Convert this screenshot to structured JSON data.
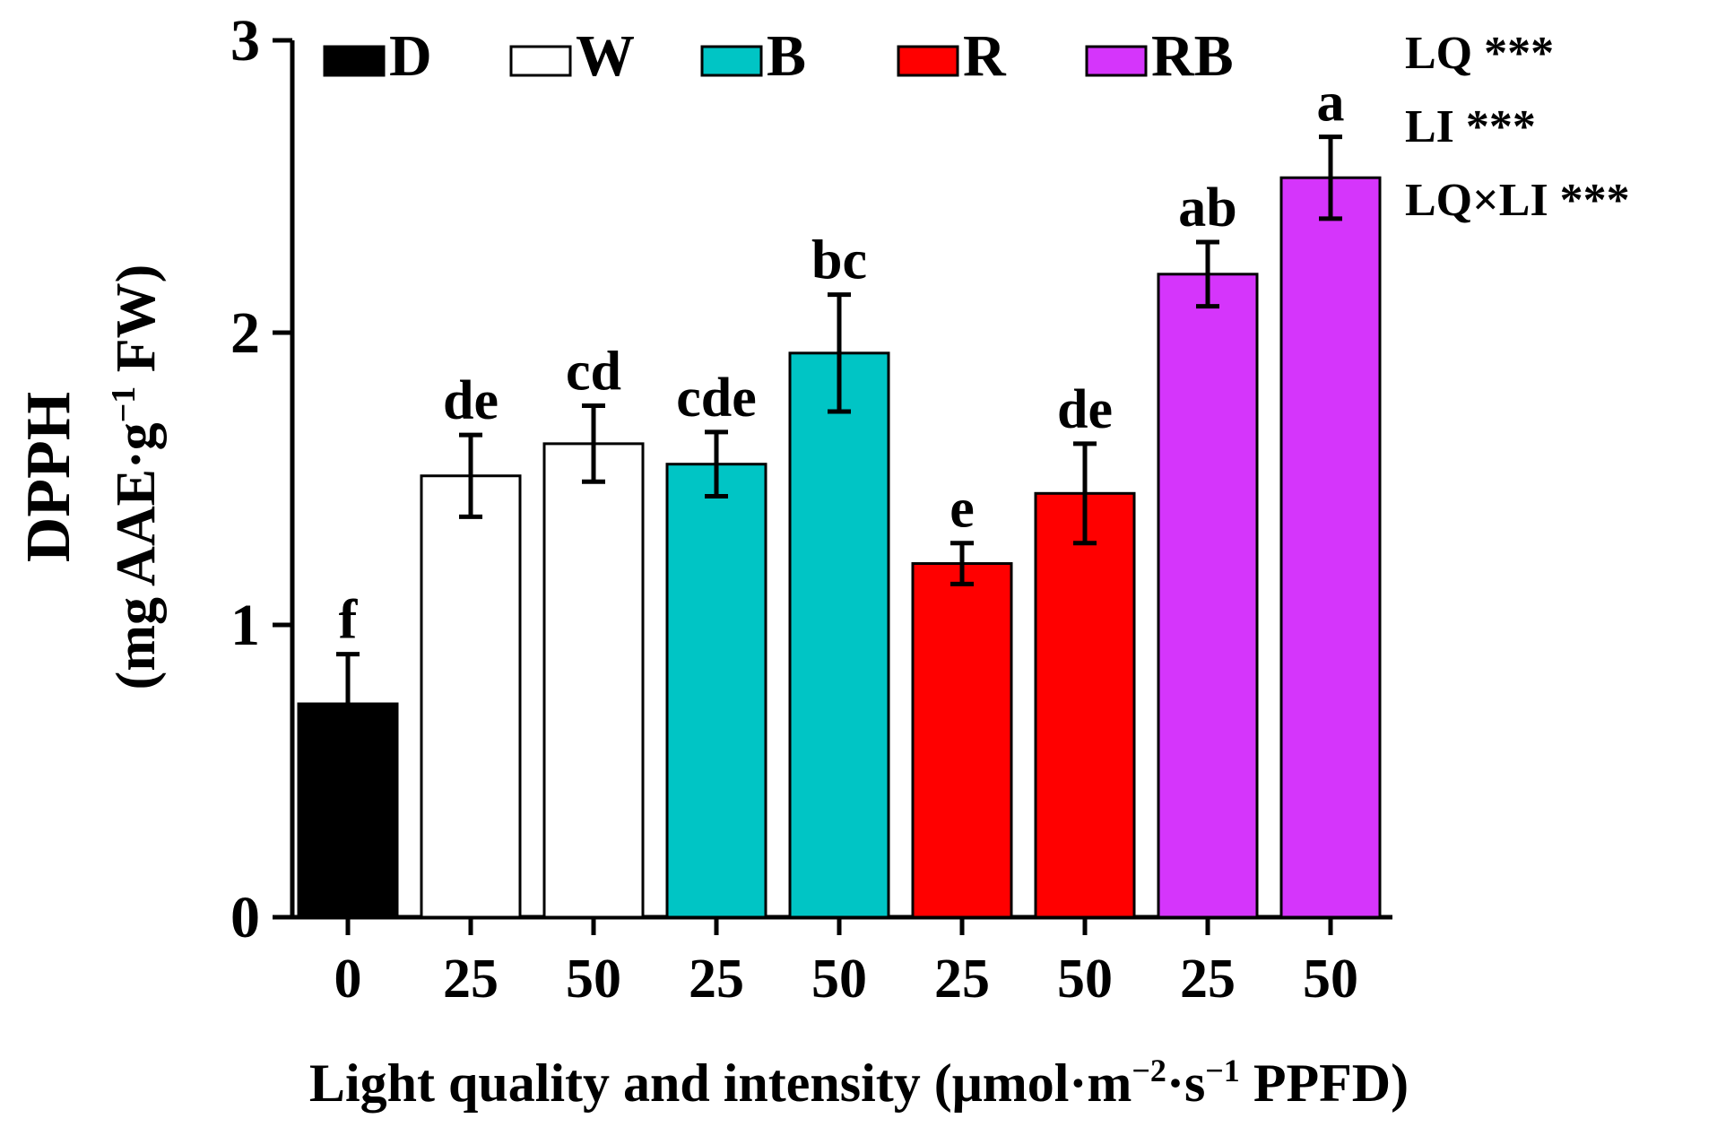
{
  "chart_data": {
    "type": "bar",
    "xlabel_prefix": "Light quality and intensity (μmol·m",
    "xlabel_exp1": "−2",
    "xlabel_mid": "·s",
    "xlabel_exp2": "−1",
    "xlabel_suffix": " PPFD)",
    "ylabel_line1": "DPPH",
    "ylabel_line2_a": "(mg AAE·g",
    "ylabel_line2_exp": "−1",
    "ylabel_line2_b": " FW)",
    "ylim": [
      0,
      3
    ],
    "yticks": [
      "0",
      "1",
      "2",
      "3"
    ],
    "categories": [
      "0",
      "25",
      "50",
      "25",
      "50",
      "25",
      "50",
      "25",
      "50"
    ],
    "values": [
      0.73,
      1.51,
      1.62,
      1.55,
      1.93,
      1.21,
      1.45,
      2.2,
      2.53
    ],
    "errors": [
      0.17,
      0.14,
      0.13,
      0.11,
      0.2,
      0.07,
      0.17,
      0.11,
      0.14
    ],
    "letters": [
      "f",
      "de",
      "cd",
      "cde",
      "bc",
      "e",
      "de",
      "ab",
      "a"
    ],
    "groups": [
      "D",
      "W",
      "W",
      "B",
      "B",
      "R",
      "R",
      "RB",
      "RB"
    ],
    "legend": [
      {
        "name": "D",
        "color": "#000000"
      },
      {
        "name": "W",
        "color": "#ffffff"
      },
      {
        "name": "B",
        "color": "#00c5c5"
      },
      {
        "name": "R",
        "color": "#ff0000"
      },
      {
        "name": "RB",
        "color": "#d535fb"
      }
    ],
    "annotations": [
      "LQ ***",
      "LI ***",
      "LQ×LI ***"
    ],
    "legend_position": "top",
    "grid": false
  }
}
